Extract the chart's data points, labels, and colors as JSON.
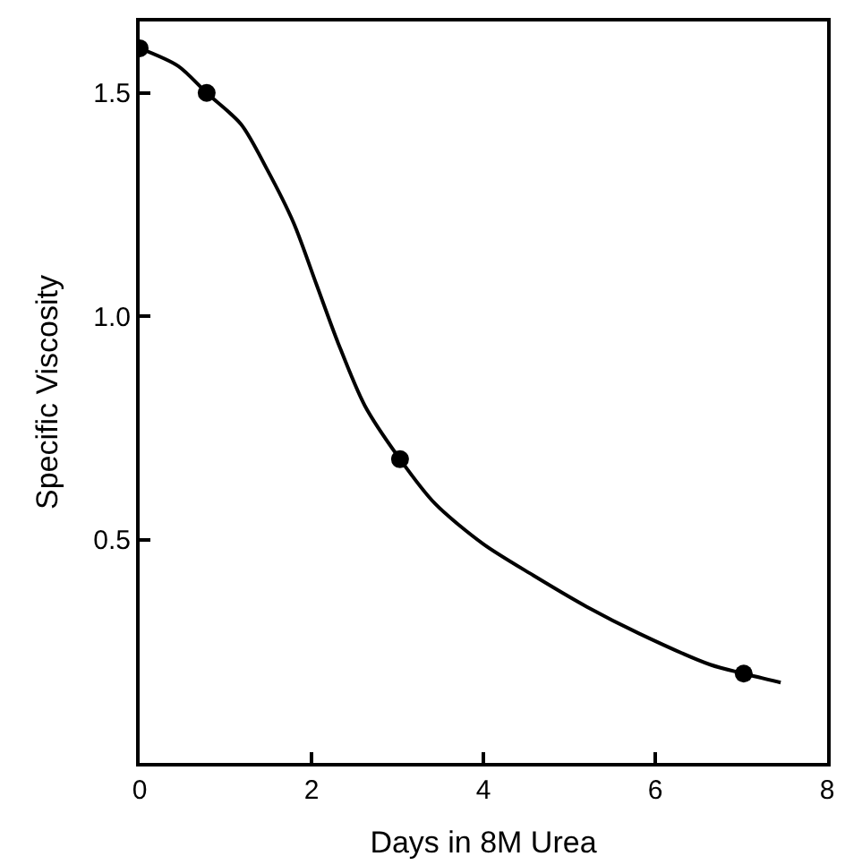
{
  "chart_data": {
    "type": "line",
    "xlabel": "Days in 8M Urea",
    "ylabel": "Specific Viscosity",
    "xlim": [
      0,
      8
    ],
    "ylim": [
      0,
      1.66
    ],
    "xticks": [
      0,
      2,
      4,
      6,
      8
    ],
    "yticks": [
      {
        "value": 0.5,
        "label": "0.5"
      },
      {
        "value": 1.0,
        "label": "1.0"
      },
      {
        "value": 1.5,
        "label": "1.5"
      }
    ],
    "series": [
      {
        "color": "#000000",
        "marker": "none",
        "line_style": "solid",
        "x": [
          0,
          0.45,
          0.78,
          1.18,
          1.48,
          1.79,
          2.06,
          2.31,
          2.62,
          3.03,
          3.44,
          4.0,
          4.58,
          5.2,
          5.81,
          6.64,
          7.03,
          7.46
        ],
        "values": [
          1.6,
          1.56,
          1.5,
          1.43,
          1.33,
          1.21,
          1.07,
          0.94,
          0.8,
          0.68,
          0.58,
          0.49,
          0.42,
          0.35,
          0.29,
          0.22,
          0.2,
          0.18
        ]
      },
      {
        "type": "scatter",
        "color": "#000000",
        "marker": "circle",
        "x": [
          0,
          0.78,
          3.03,
          7.03
        ],
        "values": [
          1.6,
          1.5,
          0.68,
          0.2
        ]
      }
    ]
  }
}
